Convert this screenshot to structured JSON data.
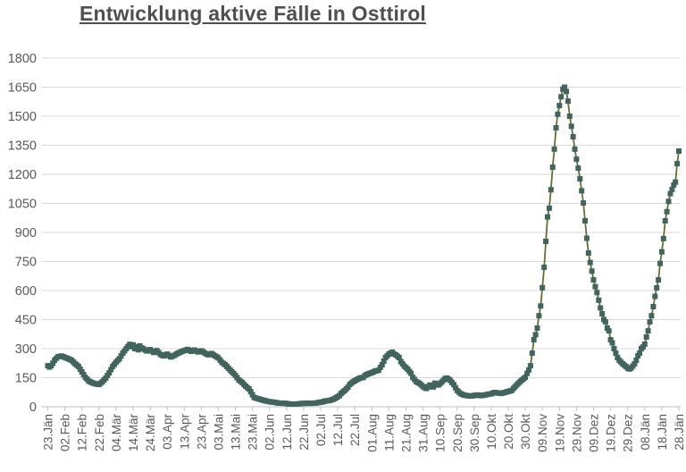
{
  "header": {
    "title": "Entwicklung aktive Fälle in Osttirol"
  },
  "colors": {
    "title_text": "#4f4f4f",
    "axis_text": "#595959",
    "gridline": "#d9d9d9",
    "axis_line": "#bfbfbf",
    "series_line": "#64702f",
    "series_marker": "#41645e",
    "background": "#ffffff"
  },
  "chart_data": {
    "type": "line",
    "title": "Entwicklung aktive Fälle in Osttirol",
    "xlabel": "",
    "ylabel": "",
    "ylim": [
      0,
      1800
    ],
    "y_ticks": [
      0,
      150,
      300,
      450,
      600,
      750,
      900,
      1050,
      1200,
      1350,
      1500,
      1650,
      1800
    ],
    "grid": "horizontal",
    "legend_position": "none",
    "x_tick_interval_days": 10,
    "x_tick_labels": [
      "23.Jän",
      "02.Feb",
      "12.Feb",
      "22.Feb",
      "04.Mär",
      "14.Mär",
      "24.Mär",
      "03.Apr",
      "13.Apr",
      "23.Apr",
      "03.Mai",
      "13.Mai",
      "23.Mai",
      "02.Jun",
      "12.Jun",
      "22.Jun",
      "02.Jul",
      "12.Jul",
      "22.Jul",
      "01.Aug",
      "11.Aug",
      "21.Aug",
      "31.Aug",
      "10.Sep",
      "20.Sep",
      "30.Sep",
      "10.Okt",
      "20.Okt",
      "30.Okt",
      "09.Nov",
      "19.Nov",
      "29.Nov",
      "09.Dez",
      "19.Dez",
      "29.Dez",
      "08.Jän",
      "18.Jän",
      "28.Jän"
    ],
    "series": [
      {
        "name": "aktive Fälle",
        "marker": "square",
        "points_format": "[day_index_from_23_Jän, active_cases]",
        "points": [
          [
            0,
            212
          ],
          [
            1,
            205
          ],
          [
            2,
            212
          ],
          [
            3,
            225
          ],
          [
            4,
            240
          ],
          [
            5,
            250
          ],
          [
            6,
            258
          ],
          [
            8,
            262
          ],
          [
            10,
            255
          ],
          [
            12,
            248
          ],
          [
            14,
            240
          ],
          [
            16,
            222
          ],
          [
            18,
            208
          ],
          [
            20,
            180
          ],
          [
            22,
            152
          ],
          [
            24,
            133
          ],
          [
            26,
            124
          ],
          [
            28,
            118
          ],
          [
            30,
            115
          ],
          [
            32,
            129
          ],
          [
            34,
            148
          ],
          [
            36,
            175
          ],
          [
            38,
            208
          ],
          [
            40,
            230
          ],
          [
            42,
            248
          ],
          [
            44,
            277
          ],
          [
            46,
            300
          ],
          [
            48,
            322
          ],
          [
            49,
            310
          ],
          [
            50,
            320
          ],
          [
            51,
            300
          ],
          [
            52,
            310
          ],
          [
            53,
            294
          ],
          [
            54,
            314
          ],
          [
            55,
            304
          ],
          [
            56,
            299
          ],
          [
            58,
            288
          ],
          [
            60,
            295
          ],
          [
            62,
            280
          ],
          [
            64,
            290
          ],
          [
            66,
            270
          ],
          [
            68,
            262
          ],
          [
            70,
            272
          ],
          [
            72,
            257
          ],
          [
            74,
            264
          ],
          [
            76,
            275
          ],
          [
            78,
            283
          ],
          [
            80,
            290
          ],
          [
            82,
            296
          ],
          [
            84,
            286
          ],
          [
            86,
            293
          ],
          [
            88,
            283
          ],
          [
            90,
            289
          ],
          [
            92,
            278
          ],
          [
            94,
            268
          ],
          [
            96,
            275
          ],
          [
            98,
            263
          ],
          [
            100,
            252
          ],
          [
            102,
            230
          ],
          [
            104,
            217
          ],
          [
            106,
            198
          ],
          [
            108,
            180
          ],
          [
            110,
            162
          ],
          [
            112,
            138
          ],
          [
            114,
            125
          ],
          [
            116,
            106
          ],
          [
            118,
            92
          ],
          [
            119,
            78
          ],
          [
            120,
            62
          ],
          [
            121,
            48
          ],
          [
            123,
            42
          ],
          [
            125,
            37
          ],
          [
            127,
            32
          ],
          [
            129,
            28
          ],
          [
            131,
            25
          ],
          [
            133,
            23
          ],
          [
            135,
            19
          ],
          [
            137,
            18
          ],
          [
            139,
            18
          ],
          [
            141,
            15
          ],
          [
            143,
            14
          ],
          [
            145,
            14
          ],
          [
            147,
            15
          ],
          [
            149,
            17
          ],
          [
            151,
            18
          ],
          [
            153,
            18
          ],
          [
            155,
            18
          ],
          [
            157,
            19
          ],
          [
            159,
            22
          ],
          [
            161,
            25
          ],
          [
            163,
            30
          ],
          [
            165,
            32
          ],
          [
            167,
            37
          ],
          [
            169,
            46
          ],
          [
            171,
            57
          ],
          [
            172,
            69
          ],
          [
            174,
            83
          ],
          [
            176,
            101
          ],
          [
            177,
            115
          ],
          [
            179,
            129
          ],
          [
            181,
            139
          ],
          [
            183,
            148
          ],
          [
            185,
            152
          ],
          [
            186,
            162
          ],
          [
            188,
            170
          ],
          [
            190,
            176
          ],
          [
            192,
            184
          ],
          [
            194,
            189
          ],
          [
            196,
            217
          ],
          [
            198,
            254
          ],
          [
            200,
            272
          ],
          [
            202,
            282
          ],
          [
            203,
            273
          ],
          [
            204,
            268
          ],
          [
            206,
            254
          ],
          [
            207,
            233
          ],
          [
            209,
            210
          ],
          [
            211,
            194
          ],
          [
            213,
            172
          ],
          [
            214,
            152
          ],
          [
            216,
            130
          ],
          [
            218,
            120
          ],
          [
            220,
            104
          ],
          [
            222,
            94
          ],
          [
            224,
            112
          ],
          [
            226,
            102
          ],
          [
            227,
            122
          ],
          [
            229,
            112
          ],
          [
            231,
            128
          ],
          [
            233,
            146
          ],
          [
            234,
            148
          ],
          [
            236,
            136
          ],
          [
            238,
            114
          ],
          [
            240,
            84
          ],
          [
            242,
            68
          ],
          [
            244,
            60
          ],
          [
            246,
            57
          ],
          [
            248,
            55
          ],
          [
            250,
            58
          ],
          [
            252,
            61
          ],
          [
            254,
            57
          ],
          [
            256,
            60
          ],
          [
            258,
            64
          ],
          [
            260,
            67
          ],
          [
            262,
            74
          ],
          [
            264,
            71
          ],
          [
            266,
            69
          ],
          [
            268,
            74
          ],
          [
            270,
            79
          ],
          [
            272,
            84
          ],
          [
            274,
            104
          ],
          [
            276,
            122
          ],
          [
            278,
            138
          ],
          [
            280,
            152
          ],
          [
            281,
            172
          ],
          [
            282,
            190
          ],
          [
            283,
            212
          ],
          [
            284,
            277
          ],
          [
            285,
            346
          ],
          [
            286,
            372
          ],
          [
            287,
            406
          ],
          [
            288,
            470
          ],
          [
            289,
            520
          ],
          [
            290,
            615
          ],
          [
            291,
            720
          ],
          [
            292,
            854
          ],
          [
            293,
            980
          ],
          [
            294,
            1025
          ],
          [
            295,
            1120
          ],
          [
            296,
            1237
          ],
          [
            297,
            1330
          ],
          [
            298,
            1440
          ],
          [
            299,
            1510
          ],
          [
            300,
            1555
          ],
          [
            301,
            1600
          ],
          [
            302,
            1640
          ],
          [
            303,
            1650
          ],
          [
            304,
            1628
          ],
          [
            305,
            1578
          ],
          [
            306,
            1500
          ],
          [
            307,
            1448
          ],
          [
            308,
            1394
          ],
          [
            309,
            1330
          ],
          [
            310,
            1278
          ],
          [
            311,
            1232
          ],
          [
            312,
            1177
          ],
          [
            313,
            1115
          ],
          [
            314,
            1052
          ],
          [
            315,
            960
          ],
          [
            316,
            870
          ],
          [
            317,
            794
          ],
          [
            318,
            745
          ],
          [
            319,
            700
          ],
          [
            320,
            655
          ],
          [
            321,
            620
          ],
          [
            322,
            590
          ],
          [
            323,
            550
          ],
          [
            324,
            510
          ],
          [
            325,
            480
          ],
          [
            326,
            450
          ],
          [
            327,
            438
          ],
          [
            328,
            406
          ],
          [
            329,
            392
          ],
          [
            330,
            346
          ],
          [
            331,
            330
          ],
          [
            332,
            300
          ],
          [
            333,
            277
          ],
          [
            334,
            254
          ],
          [
            335,
            240
          ],
          [
            336,
            231
          ],
          [
            337,
            222
          ],
          [
            338,
            215
          ],
          [
            339,
            208
          ],
          [
            340,
            200
          ],
          [
            341,
            195
          ],
          [
            342,
            200
          ],
          [
            343,
            210
          ],
          [
            344,
            222
          ],
          [
            345,
            240
          ],
          [
            346,
            263
          ],
          [
            347,
            277
          ],
          [
            348,
            300
          ],
          [
            349,
            309
          ],
          [
            350,
            323
          ],
          [
            351,
            360
          ],
          [
            352,
            392
          ],
          [
            353,
            438
          ],
          [
            354,
            470
          ],
          [
            355,
            517
          ],
          [
            356,
            570
          ],
          [
            357,
            614
          ],
          [
            358,
            655
          ],
          [
            359,
            740
          ],
          [
            360,
            800
          ],
          [
            361,
            868
          ],
          [
            362,
            960
          ],
          [
            363,
            1007
          ],
          [
            364,
            1060
          ],
          [
            365,
            1100
          ],
          [
            366,
            1122
          ],
          [
            367,
            1145
          ],
          [
            368,
            1160
          ],
          [
            369,
            1255
          ],
          [
            370,
            1320
          ]
        ]
      }
    ]
  }
}
